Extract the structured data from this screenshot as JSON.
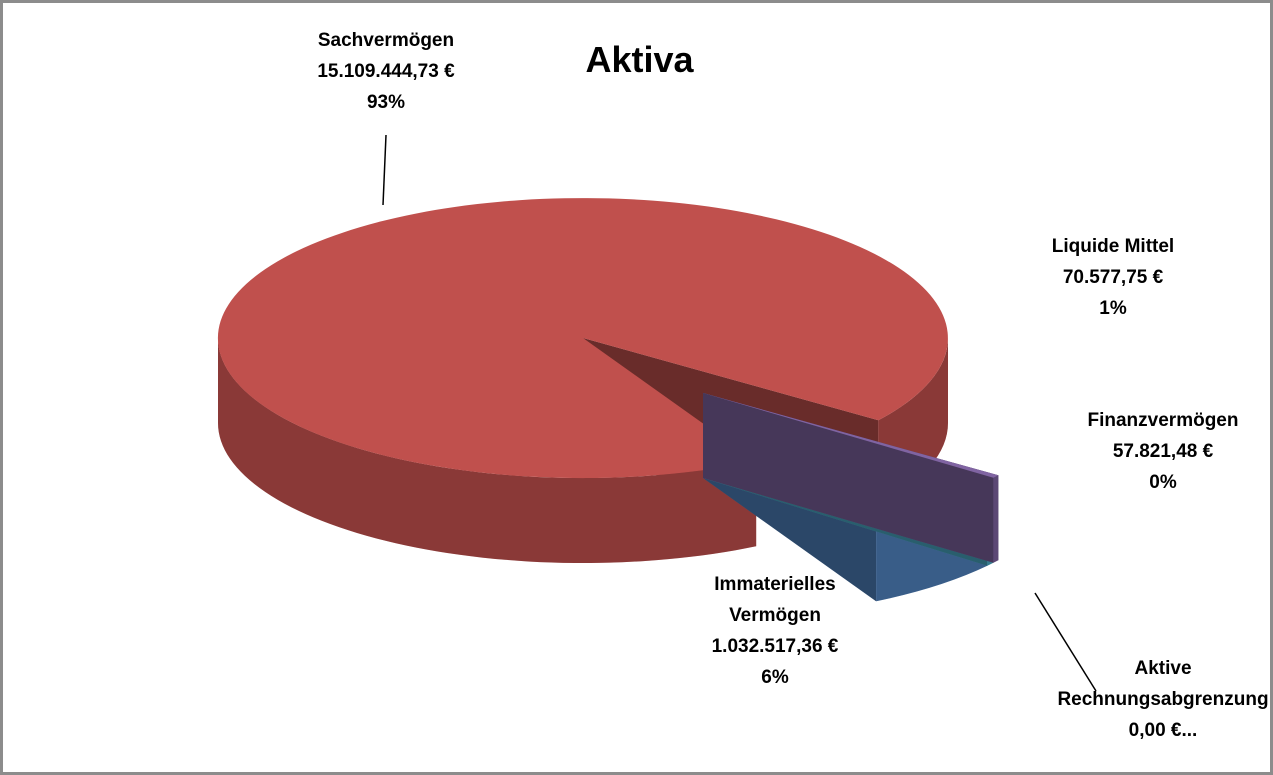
{
  "chart_data": {
    "type": "pie",
    "title": "Aktiva",
    "categories": [
      "Sachvermögen",
      "Immaterielles Vermögen",
      "Liquide Mittel",
      "Finanzvermögen",
      "Aktive Rechnungsabgrenzung"
    ],
    "values": [
      15109444.73,
      1032517.36,
      70577.75,
      57821.48,
      0.0
    ],
    "value_labels": [
      "15.109.444,73 €",
      "1.032.517,36 €",
      "70.577,75 €",
      "57.821,48 €",
      "0,00 €..."
    ],
    "percent_labels": [
      "93%",
      "6%",
      "1%",
      "0%",
      null
    ],
    "colors": [
      "#c0504d",
      "#4f81bd",
      "#4bacc6",
      "#8064a2",
      "#9bbb59"
    ]
  }
}
